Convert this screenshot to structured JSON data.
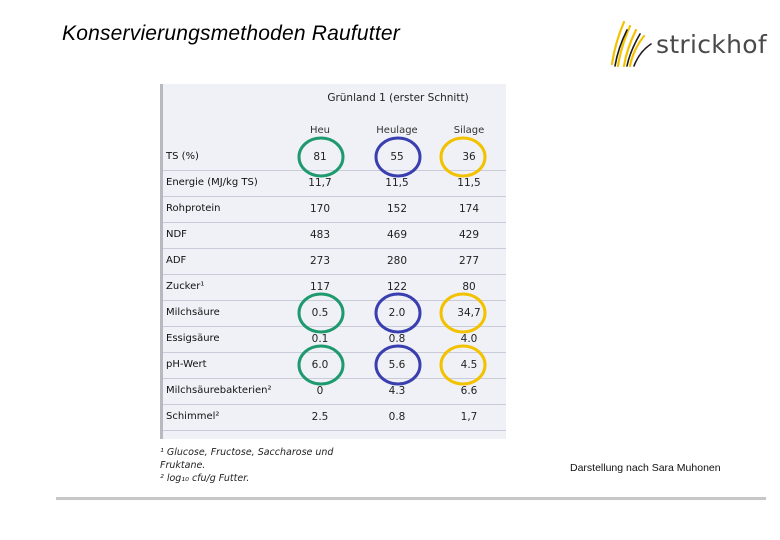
{
  "slide": {
    "title": "Konservierungsmethoden Raufutter",
    "credit": "Darstellung nach Sara Muhonen"
  },
  "logo": {
    "wordmark": "strickhof",
    "colors": {
      "grass": "#f2c200",
      "text": "#4a4a4a"
    }
  },
  "table": {
    "title": "Grünland 1 (erster Schnitt)",
    "columns": [
      "Heu",
      "Heulage",
      "Silage"
    ],
    "rows": [
      {
        "label": "TS (%)",
        "values": [
          "81",
          "55",
          "36"
        ]
      },
      {
        "label": "Energie (MJ/kg TS)",
        "values": [
          "11,7",
          "11,5",
          "11,5"
        ]
      },
      {
        "label": "Rohprotein",
        "values": [
          "170",
          "152",
          "174"
        ]
      },
      {
        "label": "NDF",
        "values": [
          "483",
          "469",
          "429"
        ]
      },
      {
        "label": "ADF",
        "values": [
          "273",
          "280",
          "277"
        ]
      },
      {
        "label": "Zucker¹",
        "values": [
          "117",
          "122",
          "80"
        ]
      },
      {
        "label": "Milchsäure",
        "values": [
          "0.5",
          "2.0",
          "34,7"
        ]
      },
      {
        "label": "Essigsäure",
        "values": [
          "0.1",
          "0.8",
          "4.0"
        ]
      },
      {
        "label": "pH-Wert",
        "values": [
          "6.0",
          "5.6",
          "4.5"
        ]
      },
      {
        "label": "Milchsäurebakterien²",
        "values": [
          "0",
          "4.3",
          "6.6"
        ]
      },
      {
        "label": "Schimmel²",
        "values": [
          "2.5",
          "0.8",
          "1,7"
        ]
      }
    ],
    "footnotes": [
      "¹ Glucose, Fructose, Saccharose und Fruktane.",
      "² log₁₀ cfu/g Futter."
    ]
  },
  "highlights": {
    "rows": [
      "TS (%)",
      "Milchsäure",
      "pH-Wert"
    ],
    "colors": {
      "Heu": "#1f9a6e",
      "Heulage": "#3a3fb0",
      "Silage": "#f2c200"
    }
  }
}
